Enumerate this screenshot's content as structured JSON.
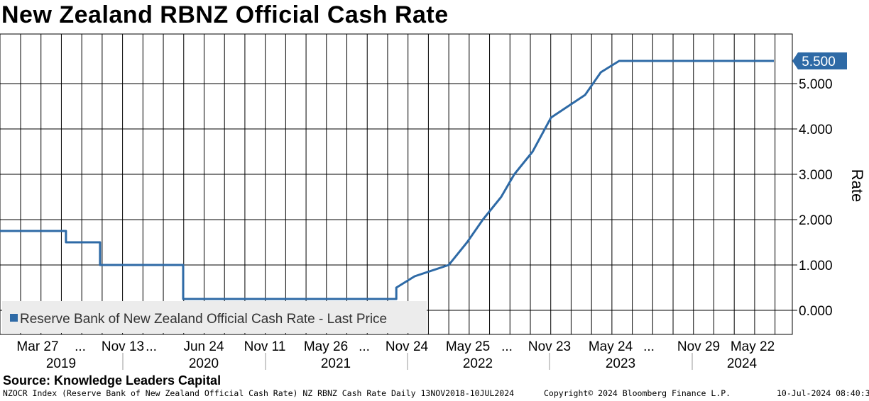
{
  "title": "New Zealand RBNZ Official Cash Rate",
  "source": "Source: Knowledge Leaders Capital",
  "footer": {
    "description": "NZOCR Index (Reserve Bank of New Zealand Official Cash Rate) NZ RBNZ Cash Rate  Daily 13NOV2018-10JUL2024",
    "copyright": "Copyright© 2024 Bloomberg Finance L.P.",
    "timestamp": "10-Jul-2024 08:40:31"
  },
  "chart_data": {
    "type": "line",
    "ylabel": "Rate",
    "ylim": [
      -0.5,
      6.0
    ],
    "yticks": [
      0,
      1,
      2,
      3,
      4,
      5
    ],
    "ytick_labels": [
      "0.000",
      "1.000",
      "2.000",
      "3.000",
      "4.000",
      "5.000"
    ],
    "grid": true,
    "legend": {
      "position": "bottom-left",
      "label": "Reserve Bank of New Zealand Official Cash Rate - Last Price"
    },
    "last_value_label": "5.500",
    "x_tick_labels": [
      "Mar 27",
      "...",
      "Nov 13",
      "...",
      "Jun 24",
      "Nov 11",
      "May 26",
      "...",
      "Nov 24",
      "May 25",
      "...",
      "Nov 23",
      "May 24",
      "...",
      "Nov 29",
      "May 22"
    ],
    "years": [
      "2019",
      "2020",
      "2021",
      "2022",
      "2023",
      "2024"
    ],
    "series": [
      {
        "name": "Reserve Bank of New Zealand Official Cash Rate - Last Price",
        "color": "#2e6aa6",
        "points": [
          [
            "2018-11-13",
            1.75
          ],
          [
            "2019-05-08",
            1.75
          ],
          [
            "2019-05-08",
            1.5
          ],
          [
            "2019-08-07",
            1.5
          ],
          [
            "2019-08-07",
            1.0
          ],
          [
            "2020-03-16",
            1.0
          ],
          [
            "2020-03-16",
            0.25
          ],
          [
            "2021-10-06",
            0.25
          ],
          [
            "2021-10-06",
            0.5
          ],
          [
            "2021-11-24",
            0.75
          ],
          [
            "2022-02-23",
            1.0
          ],
          [
            "2022-04-13",
            1.5
          ],
          [
            "2022-05-25",
            2.0
          ],
          [
            "2022-07-13",
            2.5
          ],
          [
            "2022-08-17",
            3.0
          ],
          [
            "2022-10-05",
            3.5
          ],
          [
            "2022-11-23",
            4.25
          ],
          [
            "2023-02-22",
            4.75
          ],
          [
            "2023-04-05",
            5.25
          ],
          [
            "2023-05-24",
            5.5
          ],
          [
            "2024-07-10",
            5.5
          ]
        ]
      }
    ]
  }
}
